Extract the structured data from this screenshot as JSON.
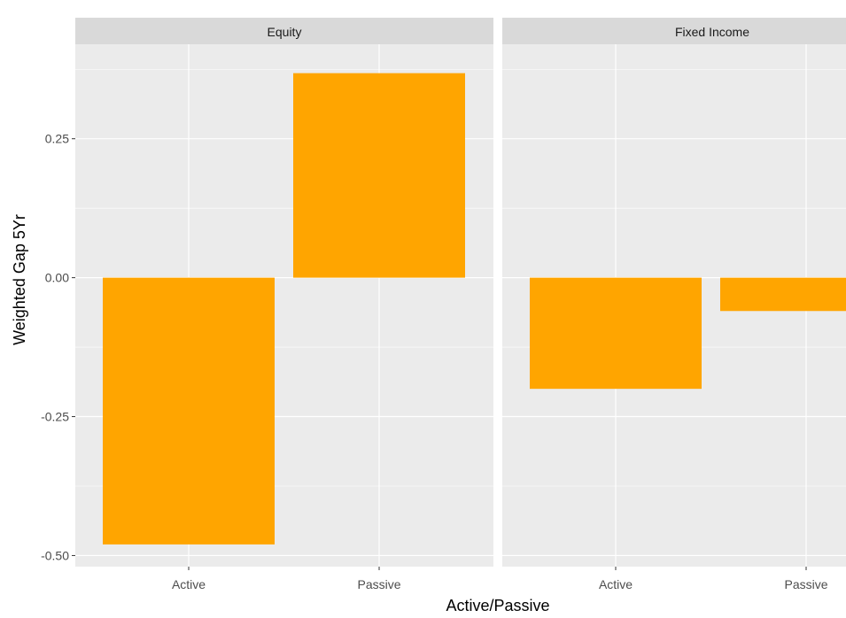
{
  "chart_data": {
    "type": "bar",
    "title": "",
    "xlabel": "Active/Passive",
    "ylabel": "Weighted Gap 5Yr",
    "ylim": [
      -0.52,
      0.42
    ],
    "yticks": [
      -0.5,
      -0.25,
      0.0,
      0.25
    ],
    "ytick_labels": [
      "-0.50",
      "-0.25",
      "0.00",
      "0.25"
    ],
    "grid": true,
    "legend": "none",
    "bar_color": "#FFA500",
    "panel_background": "#EBEBEB",
    "strip_background": "#D9D9D9",
    "facets": [
      {
        "label": "Equity",
        "categories": [
          "Active",
          "Passive"
        ],
        "values": [
          -0.48,
          0.368
        ]
      },
      {
        "label": "Fixed Income",
        "categories": [
          "Active",
          "Passive"
        ],
        "values": [
          -0.2,
          -0.06
        ]
      }
    ]
  }
}
